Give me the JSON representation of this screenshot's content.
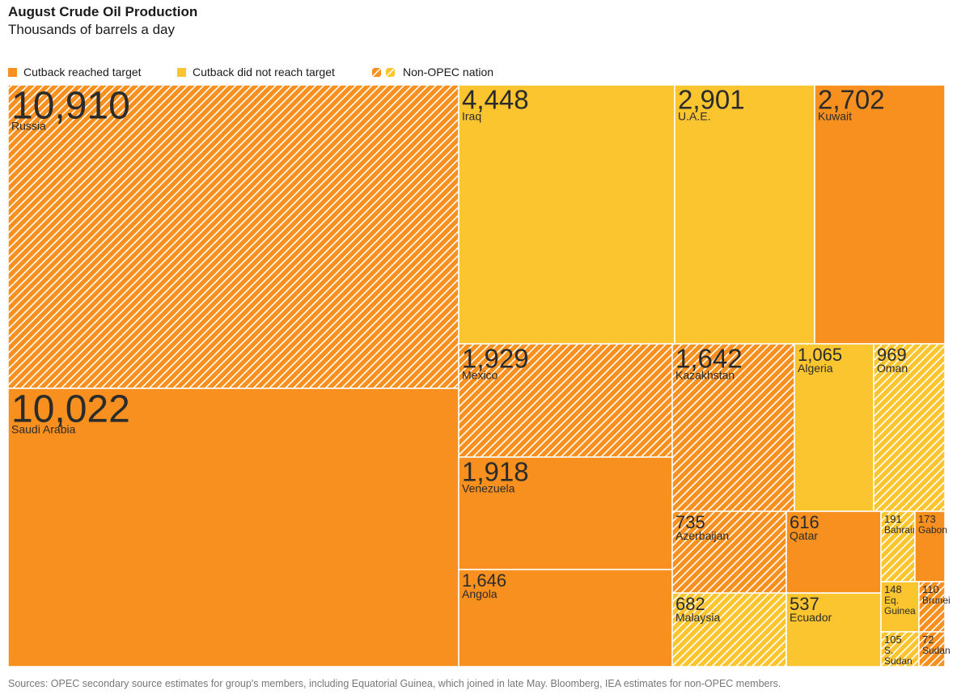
{
  "header": {
    "title": "August Crude Oil Production",
    "subtitle": "Thousands of barrels a day"
  },
  "legend": {
    "reached": "Cutback reached target",
    "not_reached": "Cutback did not reach target",
    "non_opec": "Non-OPEC nation"
  },
  "colors": {
    "reached": "#f7901e",
    "not_reached": "#fbc52f",
    "hatch": "#ffffff"
  },
  "source": "Sources: OPEC secondary source estimates for group's members, including Equatorial Guinea, which joined in late May. Bloomberg, IEA estimates for non-OPEC members.",
  "chart_data": {
    "type": "treemap",
    "title": "August Crude Oil Production",
    "subtitle": "Thousands of barrels a day",
    "items": [
      {
        "name": "Russia",
        "value": 10910,
        "label": "10,910",
        "status": "reached",
        "non_opec": true
      },
      {
        "name": "Saudi Arabia",
        "value": 10022,
        "label": "10,022",
        "status": "reached",
        "non_opec": false
      },
      {
        "name": "Iraq",
        "value": 4448,
        "label": "4,448",
        "status": "not_reached",
        "non_opec": false
      },
      {
        "name": "U.A.E.",
        "value": 2901,
        "label": "2,901",
        "status": "not_reached",
        "non_opec": false
      },
      {
        "name": "Kuwait",
        "value": 2702,
        "label": "2,702",
        "status": "reached",
        "non_opec": false
      },
      {
        "name": "Mexico",
        "value": 1929,
        "label": "1,929",
        "status": "reached",
        "non_opec": true
      },
      {
        "name": "Venezuela",
        "value": 1918,
        "label": "1,918",
        "status": "reached",
        "non_opec": false
      },
      {
        "name": "Angola",
        "value": 1646,
        "label": "1,646",
        "status": "reached",
        "non_opec": false
      },
      {
        "name": "Kazakhstan",
        "value": 1642,
        "label": "1,642",
        "status": "reached",
        "non_opec": true
      },
      {
        "name": "Algeria",
        "value": 1065,
        "label": "1,065",
        "status": "not_reached",
        "non_opec": false
      },
      {
        "name": "Oman",
        "value": 969,
        "label": "969",
        "status": "not_reached",
        "non_opec": true
      },
      {
        "name": "Azerbaijan",
        "value": 735,
        "label": "735",
        "status": "reached",
        "non_opec": true
      },
      {
        "name": "Qatar",
        "value": 616,
        "label": "616",
        "status": "reached",
        "non_opec": false
      },
      {
        "name": "Malaysia",
        "value": 682,
        "label": "682",
        "status": "not_reached",
        "non_opec": true
      },
      {
        "name": "Ecuador",
        "value": 537,
        "label": "537",
        "status": "not_reached",
        "non_opec": false
      },
      {
        "name": "Bahrain",
        "value": 191,
        "label": "191",
        "status": "not_reached",
        "non_opec": true
      },
      {
        "name": "Gabon",
        "value": 173,
        "label": "173",
        "status": "reached",
        "non_opec": false
      },
      {
        "name": "Eq. Guinea",
        "value": 148,
        "label": "148",
        "status": "not_reached",
        "non_opec": false
      },
      {
        "name": "Brunei",
        "value": 110,
        "label": "110",
        "status": "reached",
        "non_opec": true
      },
      {
        "name": "S. Sudan",
        "value": 105,
        "label": "105",
        "status": "not_reached",
        "non_opec": true
      },
      {
        "name": "Sudan",
        "value": 72,
        "label": "72",
        "status": "reached",
        "non_opec": true
      }
    ]
  }
}
